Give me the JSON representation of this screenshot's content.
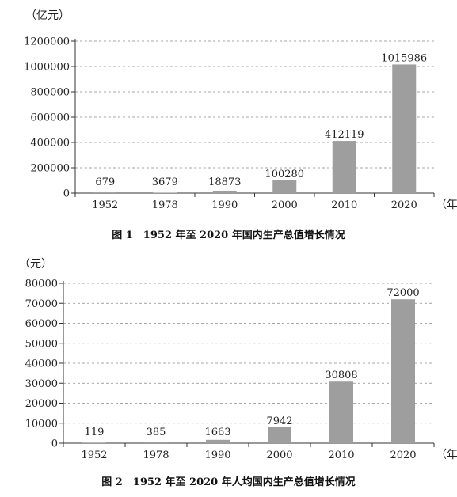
{
  "charts": [
    {
      "caption": "图 1　1952 年至 2020 年国内生产总值增长情况",
      "unit": "（亿元）",
      "x_unit": "（年）",
      "bar_color": "#9e9e9e",
      "chart_data": {
        "type": "bar",
        "categories": [
          "1952",
          "1978",
          "1990",
          "2000",
          "2010",
          "2020"
        ],
        "values": [
          679,
          3679,
          18873,
          100280,
          412119,
          1015986
        ],
        "value_labels": [
          "679",
          "3679",
          "18873",
          "100280",
          "412119",
          "1015986"
        ],
        "yticks": [
          "0",
          "200000",
          "400000",
          "600000",
          "800000",
          "1000000",
          "1200000"
        ],
        "ylim": [
          0,
          1200000
        ],
        "grid": true
      }
    },
    {
      "caption": "图 2　1952 年至 2020 年人均国内生产总值增长情况",
      "unit": "（元）",
      "x_unit": "（年）",
      "bar_color": "#9e9e9e",
      "chart_data": {
        "type": "bar",
        "categories": [
          "1952",
          "1978",
          "1990",
          "2000",
          "2010",
          "2020"
        ],
        "values": [
          119,
          385,
          1663,
          7942,
          30808,
          72000
        ],
        "value_labels": [
          "119",
          "385",
          "1663",
          "7942",
          "30808",
          "72000"
        ],
        "yticks": [
          "0",
          "10000",
          "20000",
          "30000",
          "40000",
          "50000",
          "60000",
          "70000",
          "80000"
        ],
        "ylim": [
          0,
          80000
        ],
        "grid": true
      }
    }
  ]
}
